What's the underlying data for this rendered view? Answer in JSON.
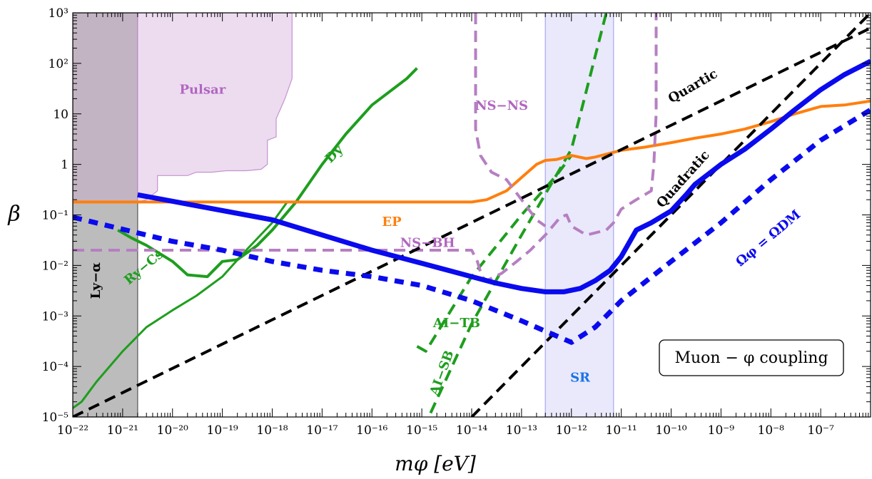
{
  "chart_data": {
    "type": "line",
    "xlabel": "mφ  [eV]",
    "ylabel": "β",
    "x_scale": "log",
    "y_scale": "log",
    "xlim": [
      1e-22,
      1e-06
    ],
    "ylim": [
      1e-05,
      1000
    ],
    "x_ticks": [
      {
        "v": 1e-22,
        "label": "10⁻²²"
      },
      {
        "v": 1e-21,
        "label": "10⁻²¹"
      },
      {
        "v": 1e-20,
        "label": "10⁻²⁰"
      },
      {
        "v": 1e-19,
        "label": "10⁻¹⁹"
      },
      {
        "v": 1e-18,
        "label": "10⁻¹⁸"
      },
      {
        "v": 1e-17,
        "label": "10⁻¹⁷"
      },
      {
        "v": 1e-16,
        "label": "10⁻¹⁶"
      },
      {
        "v": 1e-15,
        "label": "10⁻¹⁵"
      },
      {
        "v": 1e-14,
        "label": "10⁻¹⁴"
      },
      {
        "v": 1e-13,
        "label": "10⁻¹³"
      },
      {
        "v": 1e-12,
        "label": "10⁻¹²"
      },
      {
        "v": 1e-11,
        "label": "10⁻¹¹"
      },
      {
        "v": 1e-10,
        "label": "10⁻¹⁰"
      },
      {
        "v": 1e-09,
        "label": "10⁻⁹"
      },
      {
        "v": 1e-08,
        "label": "10⁻⁸"
      },
      {
        "v": 1e-07,
        "label": "10⁻⁷"
      }
    ],
    "y_ticks": [
      {
        "v": 1e-05,
        "label": "10⁻⁵"
      },
      {
        "v": 0.0001,
        "label": "10⁻⁴"
      },
      {
        "v": 0.001,
        "label": "10⁻³"
      },
      {
        "v": 0.01,
        "label": "10⁻²"
      },
      {
        "v": 0.1,
        "label": "10⁻¹"
      },
      {
        "v": 1,
        "label": "1"
      },
      {
        "v": 10,
        "label": "10"
      },
      {
        "v": 100,
        "label": "10²"
      },
      {
        "v": 1000,
        "label": "10³"
      }
    ],
    "regions": [
      {
        "name": "Ly−α",
        "fill": "#bcbcbc",
        "label": "Ly−α",
        "x": [
          1e-22,
          1e-22,
          2e-21,
          2e-21
        ],
        "y": [
          1e-05,
          0.18,
          0.18,
          1e-05
        ]
      },
      {
        "name": "Ly-alpha-upper",
        "fill": "#c3b4c3",
        "label": "",
        "x": [
          1e-22,
          1e-22,
          2e-21,
          2e-21
        ],
        "y": [
          0.18,
          1000,
          1000,
          0.18
        ]
      },
      {
        "name": "Pulsar",
        "fill": "#eddcf0",
        "label": "Pulsar",
        "x": [
          2e-21,
          2e-21,
          3e-21,
          5e-21,
          5e-21,
          2e-20,
          3e-20,
          6e-20,
          1.2e-19,
          3e-19,
          6e-19,
          8e-19,
          8e-19,
          1.2e-18,
          1.2e-18,
          1.8e-18,
          2.5e-18,
          2.5e-18
        ],
        "y": [
          1000,
          0.18,
          0.2,
          0.3,
          0.6,
          0.6,
          0.7,
          0.7,
          0.75,
          0.75,
          0.8,
          1,
          3,
          3.5,
          8,
          20,
          50,
          1000
        ]
      },
      {
        "name": "SR",
        "fill": "#e9e9fb",
        "label": "SR",
        "x": [
          3e-13,
          3e-13,
          7e-12,
          7e-12
        ],
        "y": [
          1e-05,
          1000,
          1000,
          1e-05
        ]
      }
    ],
    "series": [
      {
        "name": "Dy",
        "color": "#1e9e1e",
        "style": "solid",
        "width": 4,
        "x": [
          8e-22,
          1.5e-21,
          3e-21,
          1e-20,
          2e-20,
          5e-20,
          1e-19,
          2e-19,
          5e-19,
          1e-18,
          3e-18,
          1e-17,
          3e-17,
          1e-16,
          5e-16,
          8e-16
        ],
        "y": [
          0.05,
          0.035,
          0.025,
          0.012,
          0.0065,
          0.006,
          0.012,
          0.013,
          0.025,
          0.05,
          0.18,
          1,
          4,
          15,
          50,
          80
        ]
      },
      {
        "name": "Ry−Cs",
        "color": "#1e9e1e",
        "style": "solid",
        "width": 3,
        "x": [
          1e-22,
          1.5e-22,
          3e-22,
          1e-21,
          3e-21,
          1e-20,
          3e-20,
          1e-19,
          3e-19,
          1e-18,
          2e-18
        ],
        "y": [
          1.5e-05,
          2e-05,
          5e-05,
          0.0002,
          0.0006,
          0.0013,
          0.0025,
          0.006,
          0.02,
          0.07,
          0.18
        ]
      },
      {
        "name": "AI−TB",
        "color": "#1e9e1e",
        "style": "dashed",
        "width": 4,
        "x": [
          8e-16,
          1.2e-15,
          1e-14,
          1e-13,
          5e-13,
          1e-12
        ],
        "y": [
          0.00025,
          0.0002,
          0.006,
          0.1,
          0.6,
          1.5
        ]
      },
      {
        "name": "AI−SB",
        "color": "#1e9e1e",
        "style": "dashed",
        "width": 4,
        "x": [
          1.5e-15,
          1e-14,
          1e-13,
          1e-12,
          5e-12
        ],
        "y": [
          1.2e-05,
          0.0007,
          0.04,
          2,
          1000
        ]
      },
      {
        "name": "EP",
        "color": "#ff7f0e",
        "style": "solid",
        "width": 4,
        "x": [
          1e-22,
          1e-16,
          1e-14,
          2e-14,
          5e-14,
          1e-13,
          2e-13,
          3e-13,
          5e-13,
          1e-12,
          2e-12,
          3e-12,
          1e-11,
          3e-11,
          1e-10,
          3e-10,
          1e-09,
          3e-09,
          1e-08,
          3e-08,
          1e-07,
          3e-07,
          1e-06
        ],
        "y": [
          0.18,
          0.18,
          0.18,
          0.2,
          0.3,
          0.55,
          1.0,
          1.2,
          1.25,
          1.5,
          1.3,
          1.4,
          1.9,
          2.2,
          2.7,
          3.3,
          4,
          5,
          7,
          10,
          14,
          15,
          18
        ]
      },
      {
        "name": "NS−BH",
        "color": "#b67fc2",
        "style": "dashed",
        "width": 4,
        "x": [
          1e-22,
          1e-14,
          1.3e-14,
          1.6e-14,
          2e-14,
          4e-14,
          8e-14,
          1.5e-13,
          3e-13,
          6e-13,
          8e-13,
          1e-12,
          2e-12,
          5e-12,
          7e-12,
          1e-11,
          2e-11,
          4e-11,
          4.5e-11,
          5e-11,
          5e-11
        ],
        "y": [
          0.02,
          0.02,
          0.012,
          0.006,
          0.005,
          0.007,
          0.012,
          0.02,
          0.04,
          0.09,
          0.1,
          0.06,
          0.04,
          0.05,
          0.07,
          0.13,
          0.2,
          0.3,
          1,
          10,
          1000
        ]
      },
      {
        "name": "NS−NS",
        "color": "#b67fc2",
        "style": "dashed",
        "width": 4,
        "x": [
          1.2e-14,
          1.2e-14,
          1.5e-14,
          2.5e-14,
          5e-14,
          1e-13,
          2e-13,
          3e-13
        ],
        "y": [
          1000,
          5,
          1.5,
          0.7,
          0.5,
          0.2,
          0.08,
          0.06
        ]
      },
      {
        "name": "Quartic",
        "color": "#000000",
        "style": "dashed",
        "width": 4,
        "x": [
          1e-22,
          1e-06
        ],
        "y": [
          1e-05,
          500
        ]
      },
      {
        "name": "Quadratic",
        "color": "#000000",
        "style": "dashed",
        "width": 4,
        "x": [
          1e-14,
          1e-06
        ],
        "y": [
          1e-05,
          1000
        ]
      },
      {
        "name": "solid-blue",
        "color": "#0a0aee",
        "style": "solid",
        "width": 7,
        "x": [
          2e-21,
          1e-18,
          1e-17,
          1e-16,
          1e-15,
          1e-14,
          3e-14,
          1e-13,
          3e-13,
          7e-13,
          1.5e-12,
          3e-12,
          6e-12,
          1e-11,
          2e-11,
          4e-11,
          1e-10,
          2e-10,
          3e-10,
          1e-09,
          3e-09,
          1e-08,
          3e-08,
          1e-07,
          3e-07,
          1e-06
        ],
        "y": [
          0.25,
          0.08,
          0.04,
          0.02,
          0.011,
          0.006,
          0.0045,
          0.0035,
          0.003,
          0.003,
          0.0035,
          0.005,
          0.008,
          0.015,
          0.05,
          0.07,
          0.12,
          0.25,
          0.4,
          1,
          2,
          5,
          12,
          30,
          60,
          110
        ]
      },
      {
        "name": "Ωφ = ΩDM",
        "color": "#0a0aee",
        "style": "dotted",
        "width": 7,
        "x": [
          1e-22,
          1e-20,
          1e-19,
          1e-18,
          1e-17,
          1e-16,
          1e-15,
          1e-14,
          1e-13,
          3e-13,
          1e-12,
          3e-12,
          1e-11,
          1e-10,
          1e-09,
          1e-08,
          1e-07,
          1e-06
        ],
        "y": [
          0.09,
          0.03,
          0.02,
          0.012,
          0.008,
          0.006,
          0.004,
          0.002,
          0.0008,
          0.0005,
          0.0003,
          0.0006,
          0.002,
          0.012,
          0.07,
          0.5,
          3,
          12
        ]
      }
    ],
    "annotations": [
      {
        "text": "Pulsar",
        "color": "#b067bf",
        "x": 4e-20,
        "y": 25,
        "rotate": 0
      },
      {
        "text": "Dy",
        "color": "#1e9e1e",
        "x": 2e-17,
        "y": 1.4,
        "rotate": -45
      },
      {
        "text": "Ry−Cs",
        "color": "#1e9e1e",
        "x": 3e-21,
        "y": 0.008,
        "rotate": -40
      },
      {
        "text": "AI−TB",
        "color": "#1e9e1e",
        "x": 5e-15,
        "y": 0.0006,
        "rotate": 0
      },
      {
        "text": "AI−SB",
        "color": "#1e9e1e",
        "x": 3e-15,
        "y": 7e-05,
        "rotate": -70
      },
      {
        "text": "EP",
        "color": "#ff7f0e",
        "x": 2.5e-16,
        "y": 0.06,
        "rotate": 0
      },
      {
        "text": "NS−BH",
        "color": "#b067bf",
        "x": 1.3e-15,
        "y": 0.023,
        "rotate": 0
      },
      {
        "text": "NS−NS",
        "color": "#b067bf",
        "x": 4e-14,
        "y": 12,
        "rotate": 0
      },
      {
        "text": "Quartic",
        "color": "#000",
        "x": 3e-10,
        "y": 30,
        "rotate": -30
      },
      {
        "text": "Quadratic",
        "color": "#000",
        "x": 2e-10,
        "y": 0.45,
        "rotate": -48
      },
      {
        "text": "Ωφ = ΩDM",
        "color": "#0a0aee",
        "x": 1e-08,
        "y": 0.03,
        "rotate": -40
      },
      {
        "text": "SR",
        "color": "#1a73e8",
        "x": 1.5e-12,
        "y": 5e-05,
        "rotate": 0
      },
      {
        "text": "Ly−α",
        "color": "#000",
        "x": 3.5e-22,
        "y": 0.005,
        "rotate": -90
      }
    ],
    "legend_box": {
      "text": "Muon − φ coupling",
      "position": "bottom-right"
    }
  }
}
